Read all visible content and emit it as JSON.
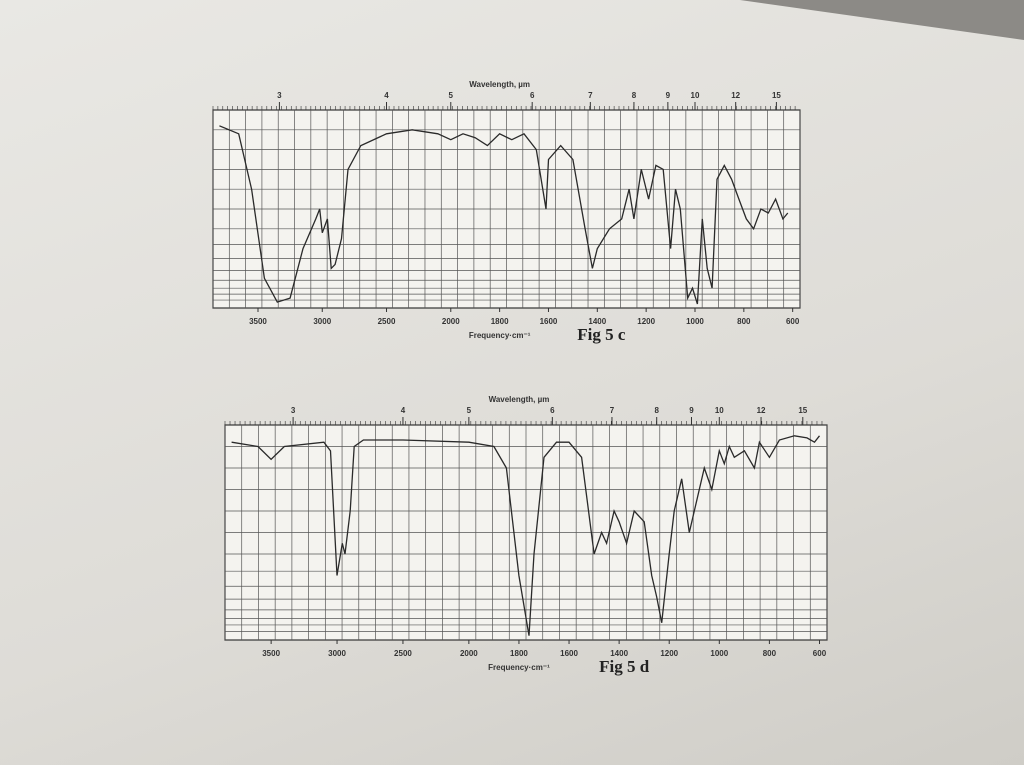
{
  "chart_data": [
    {
      "type": "line",
      "title": "Fig 5 c",
      "top_axis_label": "Wavelength, µm",
      "x_label": "Frequency·cm⁻¹",
      "xlim": [
        3850,
        570
      ],
      "xticks": [
        3500,
        3000,
        2500,
        2000,
        1800,
        1600,
        1400,
        1200,
        1000,
        800,
        600
      ],
      "top_ticks": [
        3,
        4,
        5,
        6,
        7,
        8,
        9,
        10,
        12,
        15
      ],
      "ylim": [
        0,
        100
      ],
      "color": "#2a2a2a",
      "x": [
        3800,
        3650,
        3550,
        3450,
        3350,
        3250,
        3150,
        3050,
        3020,
        3000,
        2960,
        2930,
        2900,
        2850,
        2800,
        2700,
        2500,
        2300,
        2100,
        2000,
        1950,
        1900,
        1850,
        1800,
        1750,
        1700,
        1650,
        1610,
        1600,
        1550,
        1500,
        1450,
        1420,
        1400,
        1350,
        1300,
        1270,
        1250,
        1220,
        1190,
        1160,
        1130,
        1100,
        1080,
        1060,
        1030,
        1010,
        990,
        970,
        950,
        930,
        910,
        880,
        850,
        820,
        790,
        760,
        730,
        700,
        670,
        640,
        620
      ],
      "values": [
        92,
        88,
        60,
        15,
        3,
        5,
        30,
        45,
        50,
        38,
        45,
        20,
        22,
        35,
        70,
        82,
        88,
        90,
        88,
        85,
        88,
        86,
        82,
        88,
        85,
        88,
        80,
        50,
        75,
        82,
        75,
        40,
        20,
        30,
        40,
        45,
        60,
        45,
        70,
        55,
        72,
        70,
        30,
        60,
        50,
        5,
        10,
        2,
        45,
        20,
        10,
        65,
        72,
        65,
        55,
        45,
        40,
        50,
        48,
        55,
        45,
        48
      ]
    },
    {
      "type": "line",
      "title": "Fig 5 d",
      "top_axis_label": "Wavelength, µm",
      "x_label": "Frequency·cm⁻¹",
      "xlim": [
        3850,
        570
      ],
      "xticks": [
        3500,
        3000,
        2500,
        2000,
        1800,
        1600,
        1400,
        1200,
        1000,
        800,
        600
      ],
      "top_ticks": [
        3,
        4,
        5,
        6,
        7,
        8,
        9,
        10,
        12,
        15
      ],
      "ylim": [
        0,
        100
      ],
      "color": "#2a2a2a",
      "x": [
        3800,
        3600,
        3500,
        3400,
        3100,
        3050,
        3000,
        2960,
        2940,
        2900,
        2870,
        2800,
        2500,
        2000,
        1900,
        1850,
        1800,
        1760,
        1740,
        1700,
        1650,
        1600,
        1550,
        1500,
        1470,
        1450,
        1420,
        1400,
        1370,
        1340,
        1300,
        1270,
        1250,
        1230,
        1200,
        1180,
        1150,
        1120,
        1100,
        1060,
        1030,
        1000,
        980,
        960,
        940,
        900,
        860,
        840,
        800,
        760,
        700,
        650,
        620,
        600
      ],
      "values": [
        92,
        90,
        84,
        90,
        92,
        88,
        30,
        45,
        40,
        60,
        90,
        93,
        93,
        92,
        90,
        80,
        30,
        2,
        40,
        85,
        92,
        92,
        85,
        40,
        50,
        45,
        60,
        55,
        45,
        60,
        55,
        30,
        20,
        8,
        40,
        60,
        75,
        50,
        60,
        80,
        70,
        88,
        82,
        90,
        85,
        88,
        80,
        92,
        85,
        93,
        95,
        94,
        92,
        95
      ]
    }
  ]
}
